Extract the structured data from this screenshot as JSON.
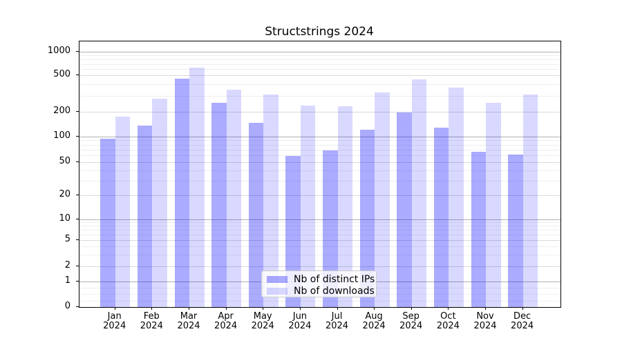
{
  "title": "Structstrings 2024",
  "chart_data": {
    "type": "bar",
    "title": "Structstrings 2024",
    "categories": [
      "Jan",
      "Feb",
      "Mar",
      "Apr",
      "May",
      "Jun",
      "Jul",
      "Aug",
      "Sep",
      "Oct",
      "Nov",
      "Dec"
    ],
    "x_year_label": "2024",
    "xlabel": "",
    "ylabel": "",
    "yscale": "symlog",
    "ylim": [
      0,
      1300
    ],
    "yticks": [
      0,
      1,
      2,
      5,
      10,
      20,
      50,
      100,
      200,
      500,
      1000
    ],
    "grid": true,
    "grid_which": "both",
    "legend_position": "lower center",
    "bar_color_base": "#0000ff",
    "series": [
      {
        "name": "Nb of distinct IPs",
        "color": "#0000ff",
        "alpha": 0.33,
        "rendered_color": "#abability",
        "values": [
          94,
          136,
          458,
          250,
          146,
          59,
          69,
          120,
          197,
          128,
          66,
          61
        ]
      },
      {
        "name": "Nb of downloads",
        "color": "#0000ff",
        "alpha": 0.15,
        "values": [
          176,
          277,
          624,
          347,
          309,
          233,
          231,
          324,
          451,
          368,
          252,
          309
        ]
      }
    ]
  }
}
